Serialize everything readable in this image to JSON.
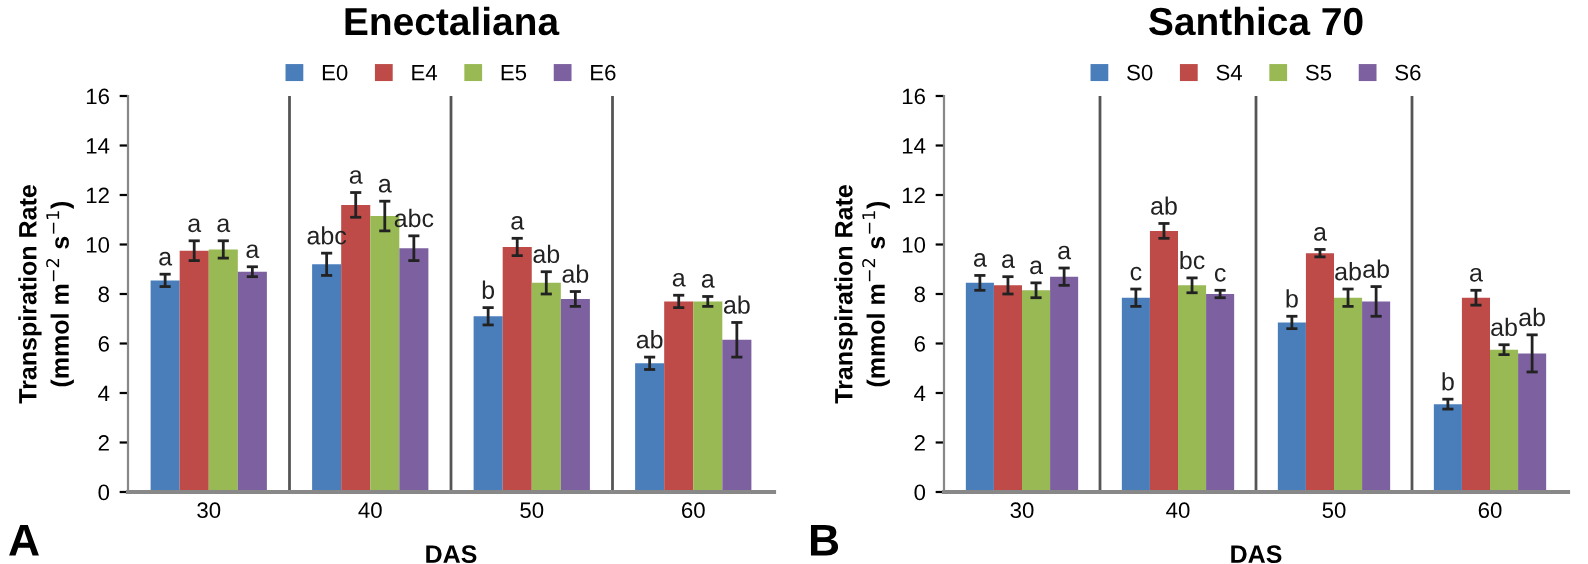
{
  "chart_data": [
    {
      "type": "bar",
      "title": "Enectaliana",
      "xlabel": "DAS",
      "ylabel": "Transpiration Rate\n(mmol m$^{−2}$ s$^{−1}$)",
      "categories": [
        "30",
        "40",
        "50",
        "60"
      ],
      "ylim": [
        0,
        16
      ],
      "yticks": [
        0,
        2,
        4,
        6,
        8,
        10,
        12,
        14,
        16
      ],
      "grid": "x",
      "legend": "top",
      "annotations": [
        "A"
      ],
      "series": [
        {
          "name": "E0",
          "color": "#4a7ebb",
          "values": [
            8.55,
            9.2,
            7.1,
            5.2
          ],
          "errors": [
            0.25,
            0.45,
            0.35,
            0.25
          ],
          "value_labels": [
            "a",
            "abc",
            "b",
            "ab"
          ]
        },
        {
          "name": "E4",
          "color": "#be4b48",
          "values": [
            9.75,
            11.6,
            9.9,
            7.7
          ],
          "errors": [
            0.4,
            0.5,
            0.35,
            0.25
          ],
          "value_labels": [
            "a",
            "a",
            "a",
            "a"
          ]
        },
        {
          "name": "E5",
          "color": "#98b954",
          "values": [
            9.8,
            11.15,
            8.45,
            7.7
          ],
          "errors": [
            0.35,
            0.6,
            0.45,
            0.2
          ],
          "value_labels": [
            "a",
            "a",
            "ab",
            "a"
          ]
        },
        {
          "name": "E6",
          "color": "#7d60a0",
          "values": [
            8.9,
            9.85,
            7.8,
            6.15
          ],
          "errors": [
            0.2,
            0.5,
            0.3,
            0.7
          ],
          "value_labels": [
            "a",
            "abc",
            "ab",
            "ab"
          ]
        }
      ]
    },
    {
      "type": "bar",
      "title": "Santhica 70",
      "xlabel": "DAS",
      "ylabel": "Transpiration Rate\n(mmol m$^{−2}$ s$^{−1}$)",
      "categories": [
        "30",
        "40",
        "50",
        "60"
      ],
      "ylim": [
        0,
        16
      ],
      "yticks": [
        0,
        2,
        4,
        6,
        8,
        10,
        12,
        14,
        16
      ],
      "grid": "x",
      "legend": "top",
      "annotations": [
        "B"
      ],
      "series": [
        {
          "name": "S0",
          "color": "#4a7ebb",
          "values": [
            8.45,
            7.85,
            6.85,
            3.55
          ],
          "errors": [
            0.3,
            0.35,
            0.25,
            0.2
          ],
          "value_labels": [
            "a",
            "c",
            "b",
            "b"
          ]
        },
        {
          "name": "S4",
          "color": "#be4b48",
          "values": [
            8.35,
            10.55,
            9.65,
            7.85
          ],
          "errors": [
            0.35,
            0.3,
            0.15,
            0.3
          ],
          "value_labels": [
            "a",
            "ab",
            "a",
            "a"
          ]
        },
        {
          "name": "S5",
          "color": "#98b954",
          "values": [
            8.15,
            8.35,
            7.85,
            5.75
          ],
          "errors": [
            0.3,
            0.3,
            0.35,
            0.2
          ],
          "value_labels": [
            "a",
            "bc",
            "ab",
            "ab"
          ]
        },
        {
          "name": "S6",
          "color": "#7d60a0",
          "values": [
            8.7,
            8.0,
            7.7,
            5.6
          ],
          "errors": [
            0.35,
            0.15,
            0.6,
            0.75
          ],
          "value_labels": [
            "a",
            "c",
            "ab",
            "ab"
          ]
        }
      ]
    }
  ]
}
